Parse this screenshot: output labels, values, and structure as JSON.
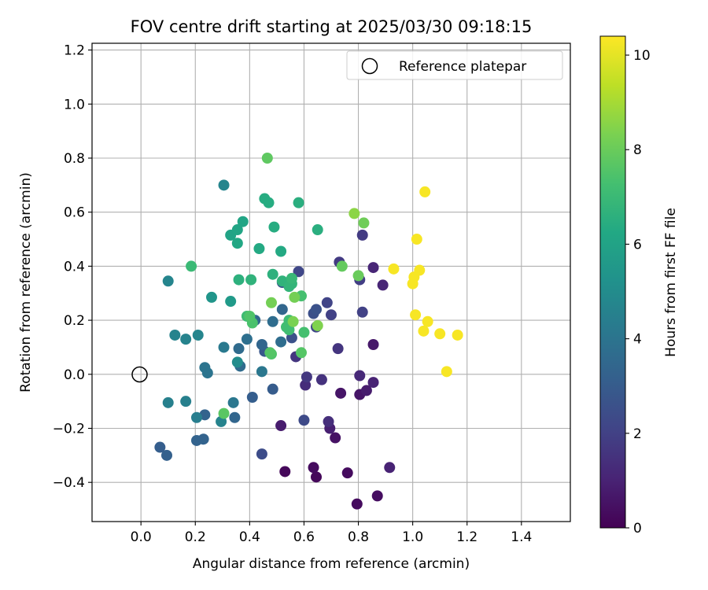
{
  "chart_data": {
    "type": "scatter",
    "title": "FOV centre drift starting at 2025/03/30 09:18:15",
    "xlabel": "Angular distance from reference (arcmin)",
    "ylabel": "Rotation from reference (arcmin)",
    "xlim": [
      -0.18,
      1.58
    ],
    "ylim": [
      -0.545,
      1.225
    ],
    "xticks": [
      0.0,
      0.2,
      0.4,
      0.6,
      0.8,
      1.0,
      1.2,
      1.4
    ],
    "xtick_labels": [
      "0.0",
      "0.2",
      "0.4",
      "0.6",
      "0.8",
      "1.0",
      "1.2",
      "1.4"
    ],
    "yticks": [
      -0.4,
      -0.2,
      0.0,
      0.2,
      0.4,
      0.6,
      0.8,
      1.0,
      1.2
    ],
    "ytick_labels": [
      "−0.4",
      "−0.2",
      "0.0",
      "0.2",
      "0.4",
      "0.6",
      "0.8",
      "1.0",
      "1.2"
    ],
    "grid": true,
    "legend": {
      "position": "top-right",
      "entries": [
        "Reference platepar"
      ]
    },
    "colormap": "viridis",
    "colorbar": {
      "label": "Hours from first FF file",
      "range": [
        0,
        10.4
      ],
      "ticks": [
        0,
        2,
        4,
        6,
        8,
        10
      ],
      "tick_labels": [
        "0",
        "2",
        "4",
        "6",
        "8",
        "10"
      ]
    },
    "reference_point": {
      "name": "Reference platepar",
      "x": 0.0,
      "y": 0.0
    },
    "points": [
      {
        "x": 0.53,
        "y": -0.36,
        "c": 0.2
      },
      {
        "x": 0.645,
        "y": -0.38,
        "c": 0.2
      },
      {
        "x": 0.635,
        "y": -0.345,
        "c": 0.3
      },
      {
        "x": 0.76,
        "y": -0.365,
        "c": 0.3
      },
      {
        "x": 0.795,
        "y": -0.48,
        "c": 0.3
      },
      {
        "x": 0.87,
        "y": -0.45,
        "c": 0.4
      },
      {
        "x": 0.715,
        "y": -0.235,
        "c": 0.5
      },
      {
        "x": 0.735,
        "y": -0.07,
        "c": 0.6
      },
      {
        "x": 0.805,
        "y": -0.075,
        "c": 0.6
      },
      {
        "x": 0.83,
        "y": -0.06,
        "c": 0.8
      },
      {
        "x": 0.515,
        "y": -0.19,
        "c": 0.8
      },
      {
        "x": 0.695,
        "y": -0.2,
        "c": 0.9
      },
      {
        "x": 0.855,
        "y": 0.11,
        "c": 0.7
      },
      {
        "x": 0.855,
        "y": -0.03,
        "c": 1.0
      },
      {
        "x": 0.915,
        "y": -0.345,
        "c": 1.0
      },
      {
        "x": 0.855,
        "y": 0.395,
        "c": 1.1
      },
      {
        "x": 0.89,
        "y": 0.33,
        "c": 1.1
      },
      {
        "x": 0.805,
        "y": -0.005,
        "c": 1.2
      },
      {
        "x": 0.605,
        "y": -0.04,
        "c": 1.3
      },
      {
        "x": 0.69,
        "y": -0.175,
        "c": 1.4
      },
      {
        "x": 0.665,
        "y": -0.02,
        "c": 1.5
      },
      {
        "x": 0.725,
        "y": 0.095,
        "c": 1.6
      },
      {
        "x": 0.57,
        "y": 0.065,
        "c": 1.6
      },
      {
        "x": 0.61,
        "y": -0.01,
        "c": 1.7
      },
      {
        "x": 0.815,
        "y": 0.515,
        "c": 1.8
      },
      {
        "x": 0.73,
        "y": 0.415,
        "c": 1.8
      },
      {
        "x": 0.805,
        "y": 0.35,
        "c": 1.9
      },
      {
        "x": 0.815,
        "y": 0.23,
        "c": 2.0
      },
      {
        "x": 0.7,
        "y": 0.22,
        "c": 2.0
      },
      {
        "x": 0.685,
        "y": 0.265,
        "c": 2.1
      },
      {
        "x": 0.645,
        "y": 0.175,
        "c": 2.2
      },
      {
        "x": 0.58,
        "y": 0.38,
        "c": 2.2
      },
      {
        "x": 0.6,
        "y": -0.17,
        "c": 2.3
      },
      {
        "x": 0.445,
        "y": -0.295,
        "c": 2.4
      },
      {
        "x": 0.635,
        "y": 0.225,
        "c": 2.5
      },
      {
        "x": 0.645,
        "y": 0.24,
        "c": 2.6
      },
      {
        "x": 0.555,
        "y": 0.135,
        "c": 2.6
      },
      {
        "x": 0.52,
        "y": 0.34,
        "c": 2.7
      },
      {
        "x": 0.455,
        "y": 0.085,
        "c": 2.8
      },
      {
        "x": 0.485,
        "y": -0.055,
        "c": 3.0
      },
      {
        "x": 0.41,
        "y": -0.085,
        "c": 3.1
      },
      {
        "x": 0.07,
        "y": -0.27,
        "c": 3.1
      },
      {
        "x": 0.095,
        "y": -0.3,
        "c": 3.2
      },
      {
        "x": 0.205,
        "y": -0.245,
        "c": 3.3
      },
      {
        "x": 0.23,
        "y": -0.24,
        "c": 3.3
      },
      {
        "x": 0.235,
        "y": -0.15,
        "c": 3.3
      },
      {
        "x": 0.345,
        "y": -0.16,
        "c": 3.4
      },
      {
        "x": 0.445,
        "y": 0.11,
        "c": 3.4
      },
      {
        "x": 0.52,
        "y": 0.24,
        "c": 3.4
      },
      {
        "x": 0.42,
        "y": 0.2,
        "c": 3.5
      },
      {
        "x": 0.36,
        "y": 0.095,
        "c": 3.6
      },
      {
        "x": 0.365,
        "y": 0.03,
        "c": 3.6
      },
      {
        "x": 0.515,
        "y": 0.12,
        "c": 3.7
      },
      {
        "x": 0.485,
        "y": 0.195,
        "c": 3.7
      },
      {
        "x": 0.39,
        "y": 0.13,
        "c": 3.8
      },
      {
        "x": 0.245,
        "y": 0.005,
        "c": 4.0
      },
      {
        "x": 0.235,
        "y": 0.025,
        "c": 4.0
      },
      {
        "x": 0.34,
        "y": -0.105,
        "c": 4.1
      },
      {
        "x": 0.445,
        "y": 0.01,
        "c": 4.1
      },
      {
        "x": 0.305,
        "y": 0.1,
        "c": 4.2
      },
      {
        "x": 0.205,
        "y": -0.16,
        "c": 4.4
      },
      {
        "x": 0.165,
        "y": -0.1,
        "c": 4.5
      },
      {
        "x": 0.1,
        "y": -0.105,
        "c": 4.5
      },
      {
        "x": 0.295,
        "y": -0.175,
        "c": 4.6
      },
      {
        "x": 0.125,
        "y": 0.145,
        "c": 4.6
      },
      {
        "x": 0.165,
        "y": 0.13,
        "c": 4.6
      },
      {
        "x": 0.21,
        "y": 0.145,
        "c": 4.7
      },
      {
        "x": 0.1,
        "y": 0.345,
        "c": 4.7
      },
      {
        "x": 0.305,
        "y": 0.7,
        "c": 4.7
      },
      {
        "x": 0.355,
        "y": 0.045,
        "c": 5.0
      },
      {
        "x": 0.26,
        "y": 0.285,
        "c": 5.4
      },
      {
        "x": 0.33,
        "y": 0.27,
        "c": 5.6
      },
      {
        "x": 0.33,
        "y": 0.515,
        "c": 6.0
      },
      {
        "x": 0.355,
        "y": 0.535,
        "c": 6.1
      },
      {
        "x": 0.375,
        "y": 0.565,
        "c": 6.1
      },
      {
        "x": 0.355,
        "y": 0.485,
        "c": 6.2
      },
      {
        "x": 0.435,
        "y": 0.465,
        "c": 6.3
      },
      {
        "x": 0.515,
        "y": 0.455,
        "c": 6.3
      },
      {
        "x": 0.49,
        "y": 0.545,
        "c": 6.4
      },
      {
        "x": 0.455,
        "y": 0.65,
        "c": 6.4
      },
      {
        "x": 0.47,
        "y": 0.635,
        "c": 6.4
      },
      {
        "x": 0.58,
        "y": 0.635,
        "c": 6.5
      },
      {
        "x": 0.65,
        "y": 0.535,
        "c": 6.5
      },
      {
        "x": 0.485,
        "y": 0.37,
        "c": 6.6
      },
      {
        "x": 0.36,
        "y": 0.35,
        "c": 6.6
      },
      {
        "x": 0.405,
        "y": 0.35,
        "c": 6.7
      },
      {
        "x": 0.52,
        "y": 0.345,
        "c": 6.7
      },
      {
        "x": 0.555,
        "y": 0.335,
        "c": 6.8
      },
      {
        "x": 0.545,
        "y": 0.325,
        "c": 6.8
      },
      {
        "x": 0.555,
        "y": 0.355,
        "c": 6.9
      },
      {
        "x": 0.185,
        "y": 0.4,
        "c": 7.0
      },
      {
        "x": 0.39,
        "y": 0.215,
        "c": 7.1
      },
      {
        "x": 0.545,
        "y": 0.2,
        "c": 7.1
      },
      {
        "x": 0.535,
        "y": 0.175,
        "c": 7.2
      },
      {
        "x": 0.545,
        "y": 0.165,
        "c": 7.2
      },
      {
        "x": 0.59,
        "y": 0.29,
        "c": 7.3
      },
      {
        "x": 0.6,
        "y": 0.155,
        "c": 7.3
      },
      {
        "x": 0.41,
        "y": 0.19,
        "c": 7.4
      },
      {
        "x": 0.4,
        "y": 0.215,
        "c": 7.5
      },
      {
        "x": 0.48,
        "y": 0.075,
        "c": 7.5
      },
      {
        "x": 0.475,
        "y": 0.08,
        "c": 7.6
      },
      {
        "x": 0.59,
        "y": 0.08,
        "c": 7.6
      },
      {
        "x": 0.305,
        "y": -0.145,
        "c": 7.7
      },
      {
        "x": 0.465,
        "y": 0.8,
        "c": 7.8
      },
      {
        "x": 0.74,
        "y": 0.4,
        "c": 7.9
      },
      {
        "x": 0.8,
        "y": 0.365,
        "c": 8.0
      },
      {
        "x": 0.82,
        "y": 0.56,
        "c": 8.1
      },
      {
        "x": 0.565,
        "y": 0.285,
        "c": 8.2
      },
      {
        "x": 0.48,
        "y": 0.265,
        "c": 8.2
      },
      {
        "x": 0.56,
        "y": 0.195,
        "c": 8.3
      },
      {
        "x": 0.65,
        "y": 0.18,
        "c": 8.4
      },
      {
        "x": 0.785,
        "y": 0.595,
        "c": 8.6
      },
      {
        "x": 0.93,
        "y": 0.39,
        "c": 10.3
      },
      {
        "x": 1.0,
        "y": 0.335,
        "c": 10.3
      },
      {
        "x": 1.005,
        "y": 0.36,
        "c": 10.3
      },
      {
        "x": 1.025,
        "y": 0.385,
        "c": 10.3
      },
      {
        "x": 1.015,
        "y": 0.5,
        "c": 10.3
      },
      {
        "x": 1.045,
        "y": 0.675,
        "c": 10.3
      },
      {
        "x": 1.01,
        "y": 0.22,
        "c": 10.3
      },
      {
        "x": 1.055,
        "y": 0.195,
        "c": 10.3
      },
      {
        "x": 1.04,
        "y": 0.16,
        "c": 10.3
      },
      {
        "x": 1.1,
        "y": 0.15,
        "c": 10.3
      },
      {
        "x": 1.165,
        "y": 0.145,
        "c": 10.3
      },
      {
        "x": 1.125,
        "y": 0.01,
        "c": 10.3
      }
    ]
  }
}
